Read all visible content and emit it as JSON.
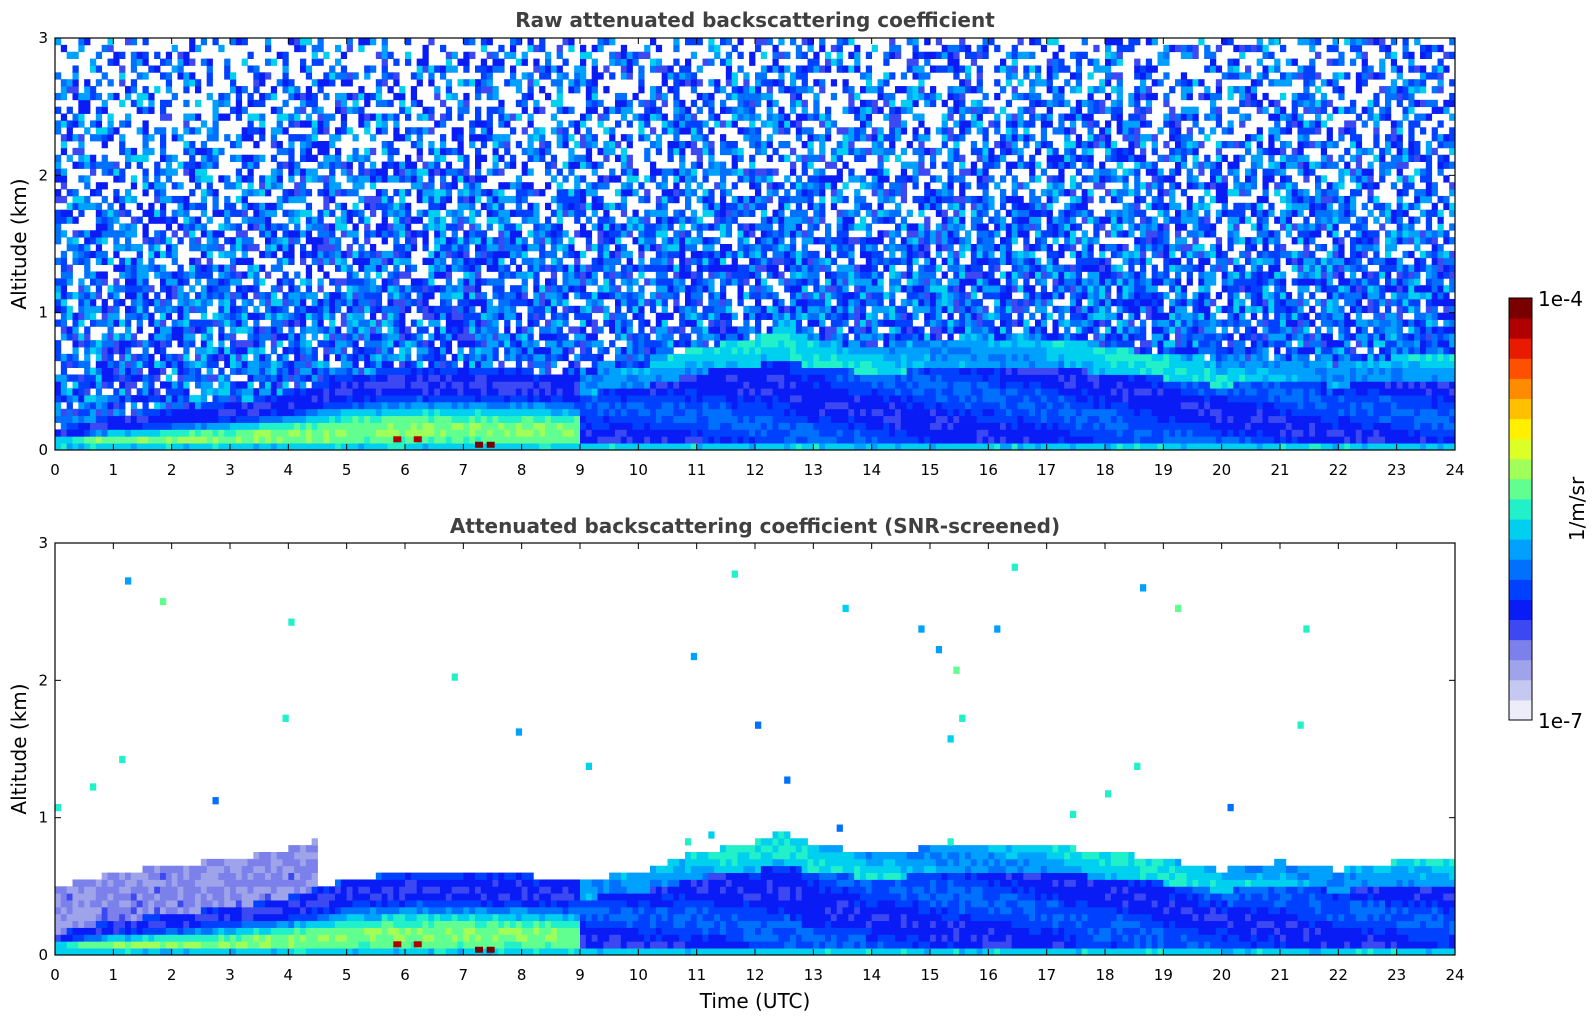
{
  "chart_data": [
    {
      "type": "heatmap",
      "title": "Raw attenuated backscattering coefficient",
      "xlabel": "",
      "ylabel": "Altitude (km)",
      "x_ticks": [
        "0",
        "1",
        "2",
        "3",
        "4",
        "5",
        "6",
        "7",
        "8",
        "9",
        "10",
        "11",
        "12",
        "13",
        "14",
        "15",
        "16",
        "17",
        "18",
        "19",
        "20",
        "21",
        "22",
        "23",
        "24"
      ],
      "y_ticks": [
        "0",
        "1",
        "2",
        "3"
      ],
      "xlim": [
        0,
        24
      ],
      "ylim": [
        0,
        3
      ],
      "boundary_layer_top_km": {
        "hours": [
          0,
          1,
          2,
          3,
          4,
          5,
          6,
          7,
          8,
          9,
          10,
          11,
          12,
          12.5,
          13,
          14,
          15,
          16,
          17,
          18,
          19,
          20,
          21,
          22,
          23,
          24
        ],
        "values": [
          0.15,
          0.25,
          0.3,
          0.35,
          0.42,
          0.55,
          0.6,
          0.6,
          0.58,
          0.55,
          0.6,
          0.75,
          0.82,
          0.9,
          0.8,
          0.75,
          0.78,
          0.8,
          0.8,
          0.75,
          0.7,
          0.62,
          0.68,
          0.62,
          0.68,
          0.7
        ]
      },
      "noise": true
    },
    {
      "type": "heatmap",
      "title": "Attenuated backscattering coefficient (SNR-screened)",
      "xlabel": "Time (UTC)",
      "ylabel": "Altitude (km)",
      "x_ticks": [
        "0",
        "1",
        "2",
        "3",
        "4",
        "5",
        "6",
        "7",
        "8",
        "9",
        "10",
        "11",
        "12",
        "13",
        "14",
        "15",
        "16",
        "17",
        "18",
        "19",
        "20",
        "21",
        "22",
        "23",
        "24"
      ],
      "y_ticks": [
        "0",
        "1",
        "2",
        "3"
      ],
      "xlim": [
        0,
        24
      ],
      "ylim": [
        0,
        3
      ],
      "boundary_layer_top_km": {
        "hours": [
          0,
          1,
          2,
          3,
          4,
          5,
          6,
          7,
          8,
          9,
          10,
          11,
          12,
          12.5,
          13,
          14,
          15,
          16,
          17,
          18,
          19,
          20,
          21,
          22,
          23,
          24
        ],
        "values": [
          0.15,
          0.25,
          0.3,
          0.35,
          0.42,
          0.55,
          0.6,
          0.6,
          0.58,
          0.55,
          0.6,
          0.75,
          0.82,
          0.9,
          0.8,
          0.75,
          0.78,
          0.8,
          0.8,
          0.75,
          0.7,
          0.62,
          0.68,
          0.62,
          0.68,
          0.7
        ]
      },
      "noise": false
    }
  ],
  "colorbar": {
    "label": "1/m/sr",
    "max_label": "1e-4",
    "min_label": "1e-7",
    "colors": [
      "#ecedf8",
      "#c5c8f0",
      "#9ea3ea",
      "#7b80ea",
      "#3c48f2",
      "#0a1cf6",
      "#0040ff",
      "#0070ff",
      "#00a0ff",
      "#00d0f0",
      "#22f0c8",
      "#60ff90",
      "#a0ff58",
      "#dcff28",
      "#fff000",
      "#ffc000",
      "#ff8c00",
      "#ff5000",
      "#e81a00",
      "#b00000",
      "#7a0000"
    ]
  }
}
